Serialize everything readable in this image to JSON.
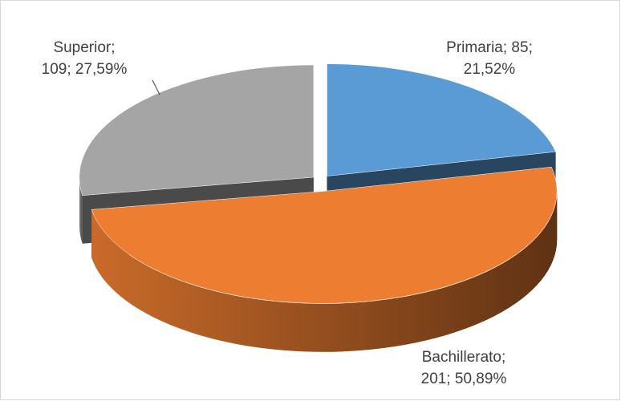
{
  "chart_data": {
    "type": "pie3d",
    "values": [
      85,
      201,
      109
    ],
    "value_labels": [
      "Primaria; 85; 21,52%",
      "Bachillerato; 201; 50,89%",
      "Superior; 109; 27,59%"
    ],
    "colors": [
      "#5b9bd5",
      "#ed7d31",
      "#a5a5a5"
    ]
  }
}
